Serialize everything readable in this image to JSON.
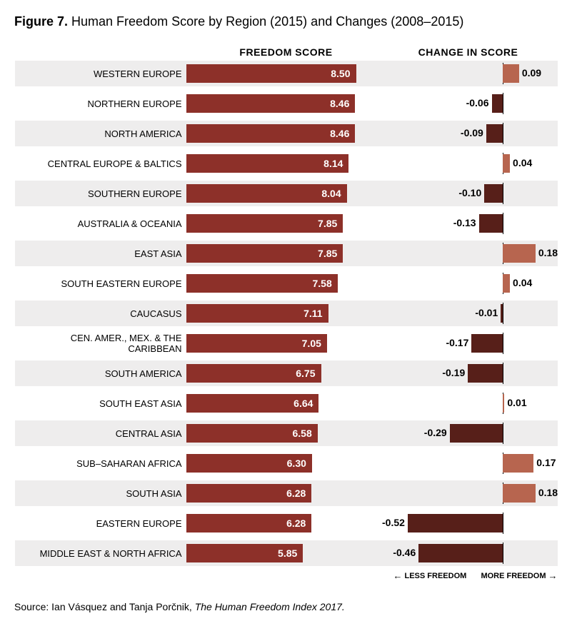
{
  "title_prefix": "Figure 7.",
  "title_rest": " Human Freedom Score by Region (2015) and Changes (2008–2015)",
  "header_score": "FREEDOM SCORE",
  "header_change": "CHANGE IN SCORE",
  "legend_less": "LESS FREEDOM",
  "legend_more": "MORE FREEDOM",
  "footer_prefix": "Source: Ian Vásquez and Tanja Porčnik, ",
  "footer_italic": "The Human Freedom Index 2017.",
  "chart": {
    "type": "bar",
    "score_max": 10.0,
    "change_min": -0.6,
    "change_max": 0.3,
    "row_bg_even": "#eeeded",
    "row_bg_odd": "#ffffff",
    "score_bar_color": "#8d3029",
    "change_neg_color": "#571f19",
    "change_pos_color": "#b7654f",
    "axis_color": "#000000",
    "score_text_color": "#ffffff",
    "label_fontsize": 13,
    "value_fontsize": 14
  },
  "rows": [
    {
      "label": "WESTERN EUROPE",
      "score": 8.5,
      "score_text": "8.50",
      "change": 0.09,
      "change_text": "0.09"
    },
    {
      "label": "NORTHERN EUROPE",
      "score": 8.46,
      "score_text": "8.46",
      "change": -0.06,
      "change_text": "-0.06"
    },
    {
      "label": "NORTH AMERICA",
      "score": 8.46,
      "score_text": "8.46",
      "change": -0.09,
      "change_text": "-0.09"
    },
    {
      "label": "CENTRAL EUROPE & BALTICS",
      "score": 8.14,
      "score_text": "8.14",
      "change": 0.04,
      "change_text": "0.04"
    },
    {
      "label": "SOUTHERN EUROPE",
      "score": 8.04,
      "score_text": "8.04",
      "change": -0.1,
      "change_text": "-0.10"
    },
    {
      "label": "AUSTRALIA & OCEANIA",
      "score": 7.85,
      "score_text": "7.85",
      "change": -0.13,
      "change_text": "-0.13"
    },
    {
      "label": "EAST ASIA",
      "score": 7.85,
      "score_text": "7.85",
      "change": 0.18,
      "change_text": "0.18"
    },
    {
      "label": "SOUTH EASTERN EUROPE",
      "score": 7.58,
      "score_text": "7.58",
      "change": 0.04,
      "change_text": "0.04"
    },
    {
      "label": "CAUCASUS",
      "score": 7.11,
      "score_text": "7.11",
      "change": -0.01,
      "change_text": "-0.01"
    },
    {
      "label": "CEN. AMER., MEX. & THE CARIBBEAN",
      "score": 7.05,
      "score_text": "7.05",
      "change": -0.17,
      "change_text": "-0.17"
    },
    {
      "label": "SOUTH AMERICA",
      "score": 6.75,
      "score_text": "6.75",
      "change": -0.19,
      "change_text": "-0.19"
    },
    {
      "label": "SOUTH EAST ASIA",
      "score": 6.64,
      "score_text": "6.64",
      "change": 0.01,
      "change_text": "0.01"
    },
    {
      "label": "CENTRAL ASIA",
      "score": 6.58,
      "score_text": "6.58",
      "change": -0.29,
      "change_text": "-0.29"
    },
    {
      "label": "SUB–SAHARAN AFRICA",
      "score": 6.3,
      "score_text": "6.30",
      "change": 0.17,
      "change_text": "0.17"
    },
    {
      "label": "SOUTH ASIA",
      "score": 6.28,
      "score_text": "6.28",
      "change": 0.18,
      "change_text": "0.18"
    },
    {
      "label": "EASTERN EUROPE",
      "score": 6.28,
      "score_text": "6.28",
      "change": -0.52,
      "change_text": "-0.52"
    },
    {
      "label": "MIDDLE EAST & NORTH AFRICA",
      "score": 5.85,
      "score_text": "5.85",
      "change": -0.46,
      "change_text": "-0.46"
    }
  ]
}
